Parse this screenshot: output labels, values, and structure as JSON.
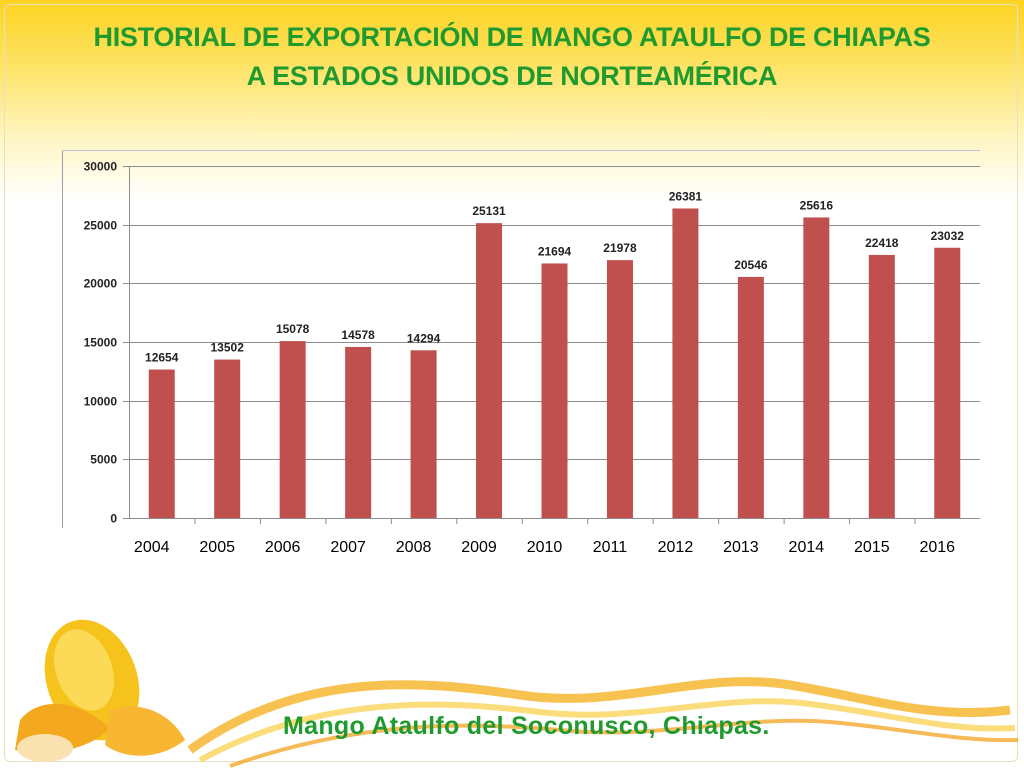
{
  "slide": {
    "title_line1": "HISTORIAL DE EXPORTACIÓN DE MANGO ATAULFO DE CHIAPAS",
    "title_line2": "A ESTADOS UNIDOS DE NORTEAMÉRICA",
    "footer": "Mango Ataulfo del Soconusco, Chiapas."
  },
  "colors": {
    "title": "#1f9a2e",
    "bar": "#c0504d",
    "grid": "#8c8c8c",
    "banner": "#fcd320"
  },
  "chart_data": {
    "type": "bar",
    "categories": [
      "2004",
      "2005",
      "2006",
      "2007",
      "2008",
      "2009",
      "2010",
      "2011",
      "2012",
      "2013",
      "2014",
      "2015",
      "2016"
    ],
    "values": [
      12654,
      13502,
      15078,
      14578,
      14294,
      25131,
      21694,
      21978,
      26381,
      20546,
      25616,
      22418,
      23032
    ],
    "ylim": [
      0,
      30000
    ],
    "yticks": [
      0,
      5000,
      10000,
      15000,
      20000,
      25000,
      30000
    ],
    "grid": true,
    "data_labels": true,
    "legend": "none"
  }
}
